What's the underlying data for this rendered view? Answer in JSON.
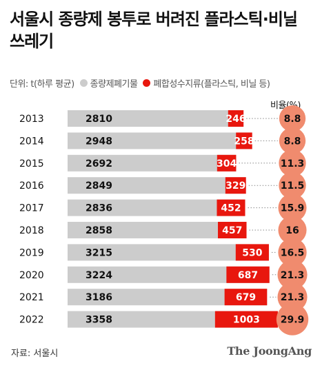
{
  "title": "서울시 종량제 봉투로 버려진 플라스틱·비닐 쓰레기",
  "legend": {
    "unit": "단위: t(하루 평균)",
    "general_label": "종량제폐기물",
    "plastic_label": "폐합성수지류(플라스틱, 비닐 등)"
  },
  "ratio_header": "비율(%)",
  "source": "자료: 서울시",
  "brand": "The JoongAng",
  "colors": {
    "general": "#cccccc",
    "plastic": "#e8170e",
    "circle": "#f08b6e",
    "text": "#111111"
  },
  "chart_data": {
    "type": "bar",
    "categories": [
      "2013",
      "2014",
      "2015",
      "2016",
      "2017",
      "2018",
      "2019",
      "2020",
      "2021",
      "2022"
    ],
    "series": [
      {
        "name": "종량제폐기물",
        "values": [
          2810,
          2948,
          2692,
          2849,
          2836,
          2858,
          3215,
          3224,
          3186,
          3358
        ]
      },
      {
        "name": "폐합성수지류(플라스틱, 비닐 등)",
        "values": [
          246,
          258,
          304,
          329,
          452,
          457,
          530,
          687,
          679,
          1003
        ]
      }
    ],
    "ratio": {
      "name": "비율(%)",
      "values": [
        8.8,
        8.8,
        11.3,
        11.5,
        15.9,
        16,
        16.5,
        21.3,
        21.3,
        29.9
      ],
      "labels": [
        "8.8",
        "8.8",
        "11.3",
        "11.5",
        "15.9",
        "16",
        "16.5",
        "21.3",
        "21.3",
        "29.9"
      ]
    },
    "orientation": "horizontal"
  }
}
